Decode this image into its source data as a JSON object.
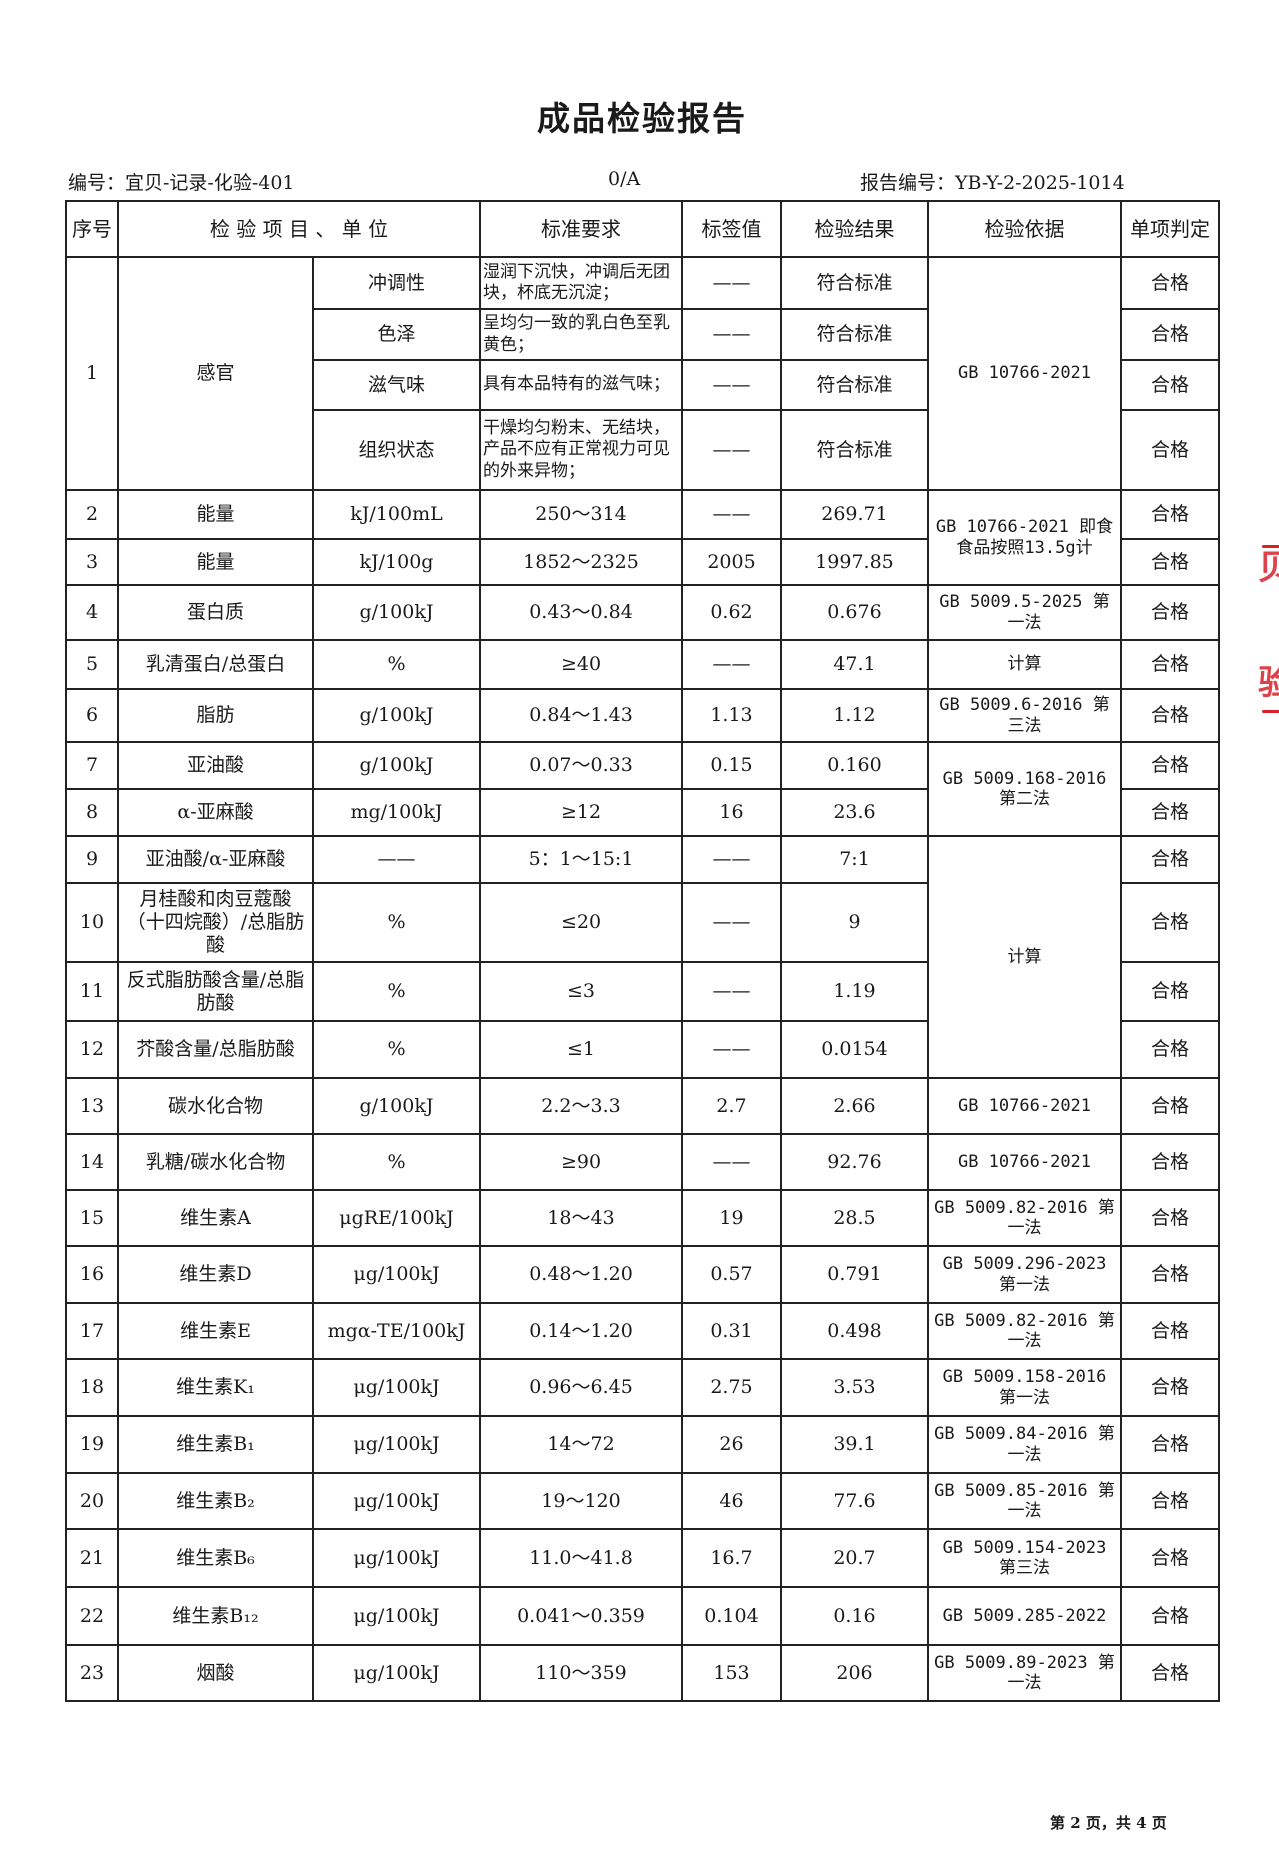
{
  "title": "成品检验报告",
  "header": {
    "code": "编号：宜贝-记录-化验-401",
    "revision": "0/A",
    "report_no": "报告编号：YB-Y-2-2025-1014"
  },
  "columns": [
    "序号",
    "检 验 项 目 、 单 位",
    "标准要求",
    "标签值",
    "检验结果",
    "检验依据",
    "单项判定"
  ],
  "sensory": {
    "seq": "1",
    "item": "感官",
    "basis": "GB 10766-2021",
    "subitems": [
      {
        "name": "冲调性",
        "requirement": "湿润下沉快，冲调后无团块，杯底无沉淀；",
        "label": "——",
        "result": "符合标准",
        "verdict": "合格"
      },
      {
        "name": "色泽",
        "requirement": "呈均匀一致的乳白色至乳黄色；",
        "label": "——",
        "result": "符合标准",
        "verdict": "合格"
      },
      {
        "name": "滋气味",
        "requirement": "具有本品特有的滋气味；",
        "label": "——",
        "result": "符合标准",
        "verdict": "合格"
      },
      {
        "name": "组织状态",
        "requirement": "干燥均匀粉末、无结块，产品不应有正常视力可见的外来异物；",
        "label": "——",
        "result": "符合标准",
        "verdict": "合格"
      }
    ]
  },
  "rows": [
    {
      "seq": "2",
      "item": "能量",
      "unit": "kJ/100mL",
      "requirement": "250～314",
      "label": "——",
      "result": "269.71",
      "basis": "GB 10766-2021 即食食品按照13.5g计",
      "verdict": "合格"
    },
    {
      "seq": "3",
      "item": "能量",
      "unit": "kJ/100g",
      "requirement": "1852～2325",
      "label": "2005",
      "result": "1997.85",
      "basis": "",
      "verdict": "合格"
    },
    {
      "seq": "4",
      "item": "蛋白质",
      "unit": "g/100kJ",
      "requirement": "0.43～0.84",
      "label": "0.62",
      "result": "0.676",
      "basis": "GB 5009.5-2025 第一法",
      "verdict": "合格"
    },
    {
      "seq": "5",
      "item": "乳清蛋白/总蛋白",
      "unit": "%",
      "requirement": "≥40",
      "label": "——",
      "result": "47.1",
      "basis": "计算",
      "verdict": "合格"
    },
    {
      "seq": "6",
      "item": "脂肪",
      "unit": "g/100kJ",
      "requirement": "0.84～1.43",
      "label": "1.13",
      "result": "1.12",
      "basis": "GB 5009.6-2016 第三法",
      "verdict": "合格"
    },
    {
      "seq": "7",
      "item": "亚油酸",
      "unit": "g/100kJ",
      "requirement": "0.07～0.33",
      "label": "0.15",
      "result": "0.160",
      "basis": "GB 5009.168-2016 第二法",
      "verdict": "合格"
    },
    {
      "seq": "8",
      "item": "α-亚麻酸",
      "unit": "mg/100kJ",
      "requirement": "≥12",
      "label": "16",
      "result": "23.6",
      "basis": "",
      "verdict": "合格"
    },
    {
      "seq": "9",
      "item": "亚油酸/α-亚麻酸",
      "unit": "——",
      "requirement": "5：1～15:1",
      "label": "——",
      "result": "7:1",
      "basis": "计算",
      "verdict": "合格"
    },
    {
      "seq": "10",
      "item": "月桂酸和肉豆蔻酸（十四烷酸）/总脂肪酸",
      "unit": "%",
      "requirement": "≤20",
      "label": "——",
      "result": "9",
      "basis": "",
      "verdict": "合格"
    },
    {
      "seq": "11",
      "item": "反式脂肪酸含量/总脂肪酸",
      "unit": "%",
      "requirement": "≤3",
      "label": "——",
      "result": "1.19",
      "basis": "",
      "verdict": "合格"
    },
    {
      "seq": "12",
      "item": "芥酸含量/总脂肪酸",
      "unit": "%",
      "requirement": "≤1",
      "label": "——",
      "result": "0.0154",
      "basis": "",
      "verdict": "合格"
    },
    {
      "seq": "13",
      "item": "碳水化合物",
      "unit": "g/100kJ",
      "requirement": "2.2～3.3",
      "label": "2.7",
      "result": "2.66",
      "basis": "GB 10766-2021",
      "verdict": "合格"
    },
    {
      "seq": "14",
      "item": "乳糖/碳水化合物",
      "unit": "%",
      "requirement": "≥90",
      "label": "——",
      "result": "92.76",
      "basis": "GB 10766-2021",
      "verdict": "合格"
    },
    {
      "seq": "15",
      "item": "维生素A",
      "unit": "μgRE/100kJ",
      "requirement": "18～43",
      "label": "19",
      "result": "28.5",
      "basis": "GB 5009.82-2016 第一法",
      "verdict": "合格"
    },
    {
      "seq": "16",
      "item": "维生素D",
      "unit": "μg/100kJ",
      "requirement": "0.48～1.20",
      "label": "0.57",
      "result": "0.791",
      "basis": "GB 5009.296-2023 第一法",
      "verdict": "合格"
    },
    {
      "seq": "17",
      "item": "维生素E",
      "unit": "mgα-TE/100kJ",
      "requirement": "0.14～1.20",
      "label": "0.31",
      "result": "0.498",
      "basis": "GB 5009.82-2016 第一法",
      "verdict": "合格"
    },
    {
      "seq": "18",
      "item": "维生素K₁",
      "unit": "μg/100kJ",
      "requirement": "0.96～6.45",
      "label": "2.75",
      "result": "3.53",
      "basis": "GB 5009.158-2016 第一法",
      "verdict": "合格"
    },
    {
      "seq": "19",
      "item": "维生素B₁",
      "unit": "μg/100kJ",
      "requirement": "14～72",
      "label": "26",
      "result": "39.1",
      "basis": "GB 5009.84-2016 第一法",
      "verdict": "合格"
    },
    {
      "seq": "20",
      "item": "维生素B₂",
      "unit": "μg/100kJ",
      "requirement": "19～120",
      "label": "46",
      "result": "77.6",
      "basis": "GB 5009.85-2016 第一法",
      "verdict": "合格"
    },
    {
      "seq": "21",
      "item": "维生素B₆",
      "unit": "μg/100kJ",
      "requirement": "11.0～41.8",
      "label": "16.7",
      "result": "20.7",
      "basis": "GB 5009.154-2023 第三法",
      "verdict": "合格"
    },
    {
      "seq": "22",
      "item": "维生素B₁₂",
      "unit": "μg/100kJ",
      "requirement": "0.041～0.359",
      "label": "0.104",
      "result": "0.16",
      "basis": "GB 5009.285-2022",
      "verdict": "合格"
    },
    {
      "seq": "23",
      "item": "烟酸",
      "unit": "μg/100kJ",
      "requirement": "110～359",
      "label": "153",
      "result": "206",
      "basis": "GB 5009.89-2023 第一法",
      "verdict": "合格"
    }
  ],
  "footer": "第 2 页，共 4 页",
  "stamp": {
    "text": [
      "贝",
      "验"
    ],
    "color": "#d8202a"
  }
}
